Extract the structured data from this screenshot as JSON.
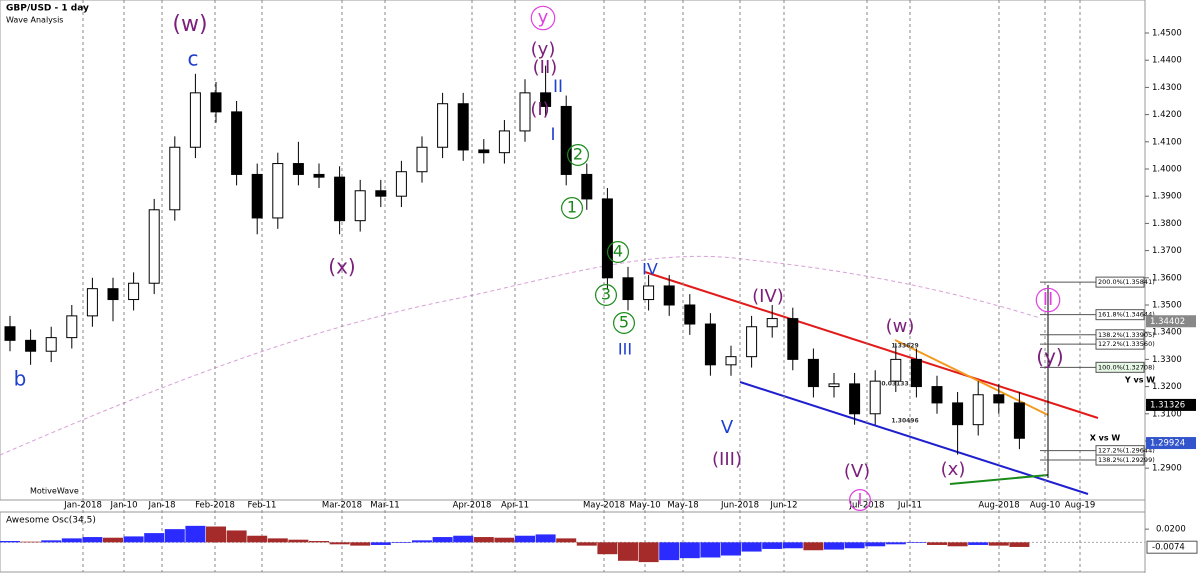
{
  "header": {
    "title": "GBP/USD - 1 day",
    "subtitle": "Wave Analysis",
    "footer": "MotiveWave"
  },
  "chart_data": [
    {
      "type": "candlestick",
      "up_color": "#ffffff",
      "down_color": "#000000",
      "ylim": [
        1.2783,
        1.4614
      ],
      "yticks": [
        {
          "value": 1.29,
          "label": "1.2900"
        },
        {
          "value": 1.3,
          "label": "1.3000"
        },
        {
          "value": 1.31,
          "label": "1.3100"
        },
        {
          "value": 1.32,
          "label": "1.3200"
        },
        {
          "value": 1.33,
          "label": "1.3300"
        },
        {
          "value": 1.34,
          "label": "1.3400"
        },
        {
          "value": 1.35,
          "label": "1.3500"
        },
        {
          "value": 1.36,
          "label": "1.3600"
        },
        {
          "value": 1.37,
          "label": "1.3700"
        },
        {
          "value": 1.38,
          "label": "1.3800"
        },
        {
          "value": 1.39,
          "label": "1.3900"
        },
        {
          "value": 1.4,
          "label": "1.4000"
        },
        {
          "value": 1.41,
          "label": "1.4100"
        },
        {
          "value": 1.42,
          "label": "1.4200"
        },
        {
          "value": 1.43,
          "label": "1.4300"
        },
        {
          "value": 1.44,
          "label": "1.4400"
        },
        {
          "value": 1.45,
          "label": "1.4500"
        }
      ],
      "x_axis_labels": [
        "Jan-2018",
        "Jan-10",
        "Jan-18",
        "Feb-2018",
        "Feb-11",
        "Mar-2018",
        "Mar-11",
        "Apr-2018",
        "Apr-11",
        "May-2018",
        "May-10",
        "May-18",
        "Jun-2018",
        "Jun-12",
        "Jul-2018",
        "Jul-11",
        "Aug-2018",
        "Aug-10",
        "Aug-19"
      ],
      "open": [
        1.342,
        1.337,
        1.333,
        1.338,
        1.346,
        1.356,
        1.352,
        1.358,
        1.385,
        1.408,
        1.428,
        1.421,
        1.398,
        1.382,
        1.402,
        1.398,
        1.397,
        1.381,
        1.392,
        1.39,
        1.399,
        1.408,
        1.424,
        1.407,
        1.406,
        1.414,
        1.428,
        1.423,
        1.398,
        1.389,
        1.36,
        1.352,
        1.357,
        1.35,
        1.343,
        1.328,
        1.331,
        1.342,
        1.345,
        1.33,
        1.32,
        1.321,
        1.31,
        1.322,
        1.33,
        1.32,
        1.314,
        1.306,
        1.317,
        1.314
      ],
      "high": [
        1.346,
        1.341,
        1.342,
        1.35,
        1.36,
        1.36,
        1.362,
        1.389,
        1.412,
        1.435,
        1.432,
        1.425,
        1.402,
        1.406,
        1.41,
        1.402,
        1.401,
        1.396,
        1.396,
        1.403,
        1.412,
        1.428,
        1.428,
        1.411,
        1.418,
        1.433,
        1.438,
        1.427,
        1.402,
        1.393,
        1.364,
        1.361,
        1.361,
        1.354,
        1.347,
        1.335,
        1.346,
        1.35,
        1.349,
        1.334,
        1.325,
        1.325,
        1.326,
        1.336,
        1.334,
        1.324,
        1.318,
        1.322,
        1.321,
        1.318
      ],
      "low": [
        1.333,
        1.328,
        1.329,
        1.334,
        1.342,
        1.344,
        1.348,
        1.354,
        1.381,
        1.404,
        1.417,
        1.394,
        1.376,
        1.378,
        1.394,
        1.393,
        1.376,
        1.377,
        1.386,
        1.386,
        1.395,
        1.404,
        1.403,
        1.402,
        1.402,
        1.41,
        1.419,
        1.394,
        1.385,
        1.356,
        1.348,
        1.348,
        1.346,
        1.339,
        1.324,
        1.324,
        1.327,
        1.338,
        1.326,
        1.316,
        1.316,
        1.306,
        1.306,
        1.318,
        1.316,
        1.31,
        1.295,
        1.302,
        1.31,
        1.297
      ],
      "close": [
        1.337,
        1.333,
        1.338,
        1.346,
        1.356,
        1.352,
        1.358,
        1.385,
        1.408,
        1.428,
        1.421,
        1.398,
        1.382,
        1.402,
        1.398,
        1.397,
        1.381,
        1.392,
        1.39,
        1.399,
        1.408,
        1.424,
        1.407,
        1.406,
        1.414,
        1.428,
        1.423,
        1.398,
        1.389,
        1.36,
        1.352,
        1.357,
        1.35,
        1.343,
        1.328,
        1.331,
        1.342,
        1.345,
        1.33,
        1.32,
        1.321,
        1.31,
        1.322,
        1.33,
        1.32,
        1.314,
        1.306,
        1.317,
        1.314,
        1.301
      ],
      "annotations": [
        {
          "text": "(w)",
          "color": "#7b1f7b"
        },
        {
          "text": "c",
          "color": "#1f3fd0"
        },
        {
          "text": "b",
          "color": "#1f3fd0"
        },
        {
          "text": "(x)",
          "color": "#7b1f7b"
        },
        {
          "text": "y",
          "color": "#e040e0"
        },
        {
          "text": "(y)",
          "color": "#7b1f7b"
        },
        {
          "text": "(II)",
          "color": "#7b1f7b"
        },
        {
          "text": "II",
          "color": "#1f3fd0"
        },
        {
          "text": "(I)",
          "color": "#7b1f7b"
        },
        {
          "text": "I",
          "color": "#1f3fd0"
        },
        {
          "text": "2",
          "color": "#1a8a1a"
        },
        {
          "text": "1",
          "color": "#1a8a1a"
        },
        {
          "text": "4",
          "color": "#1a8a1a"
        },
        {
          "text": "3",
          "color": "#1a8a1a"
        },
        {
          "text": "5",
          "color": "#1a8a1a"
        },
        {
          "text": "III",
          "color": "#1f3fd0"
        },
        {
          "text": "IV",
          "color": "#1f3fd0"
        },
        {
          "text": "V",
          "color": "#1f3fd0"
        },
        {
          "text": "(III)",
          "color": "#7b1f7b"
        },
        {
          "text": "(IV)",
          "color": "#7b1f7b"
        },
        {
          "text": "(V)",
          "color": "#7b1f7b"
        },
        {
          "text": "I",
          "color": "#e040e0"
        },
        {
          "text": "(w)",
          "color": "#7b1f7b"
        },
        {
          "text": "(x)",
          "color": "#7b1f7b"
        },
        {
          "text": "II",
          "color": "#e040e0"
        },
        {
          "text": "(y)",
          "color": "#7b1f7b"
        },
        {
          "text": "Y vs W",
          "color": "#000000"
        },
        {
          "text": "X vs W",
          "color": "#000000"
        },
        {
          "text": "1.33629",
          "color": "#333333"
        },
        {
          "text": "0.03133",
          "color": "#333333"
        },
        {
          "text": "1.30496",
          "color": "#333333"
        }
      ],
      "fib_levels": [
        {
          "value": 1.35841,
          "label": "200.0%(1.35841)"
        },
        {
          "value": 1.34644,
          "label": "161.8%(1.34644)"
        },
        {
          "value": 1.33905,
          "label": "138.2%(1.33905)"
        },
        {
          "value": 1.3356,
          "label": "127.2%(1.33560)"
        },
        {
          "value": 1.32708,
          "label": "100.0%(1.32708)"
        },
        {
          "value": 1.29644,
          "label": "127.2%(1.29644)"
        },
        {
          "value": 1.29299,
          "label": "138.2%(1.29299)"
        }
      ],
      "price_labels": [
        {
          "value": 1.34402,
          "label": "1.34402",
          "color": "#888888"
        },
        {
          "value": 1.31326,
          "label": "1.31326",
          "color": "#000000"
        },
        {
          "value": 1.29924,
          "label": "1.29924",
          "color": "#3355cc"
        }
      ]
    },
    {
      "type": "bar",
      "title": "Awesome Osc(34,5)",
      "up_color": "#2b2bff",
      "down_color": "#a52a2a",
      "ylim": [
        -0.045,
        0.046
      ],
      "yticks": [
        {
          "value": 0.02,
          "label": "0.0200"
        }
      ],
      "last_label": {
        "value": -0.0074,
        "label": "-0.0074"
      },
      "values": [
        0.002,
        0.001,
        0.003,
        0.006,
        0.008,
        0.007,
        0.009,
        0.014,
        0.02,
        0.025,
        0.024,
        0.018,
        0.01,
        0.006,
        0.004,
        0.002,
        -0.003,
        -0.005,
        -0.004,
        -0.001,
        0.003,
        0.008,
        0.01,
        0.008,
        0.007,
        0.01,
        0.012,
        0.006,
        -0.005,
        -0.018,
        -0.028,
        -0.03,
        -0.027,
        -0.024,
        -0.023,
        -0.02,
        -0.014,
        -0.01,
        -0.009,
        -0.012,
        -0.011,
        -0.009,
        -0.006,
        -0.003,
        -0.001,
        -0.004,
        -0.006,
        -0.004,
        -0.005,
        -0.007
      ]
    }
  ]
}
